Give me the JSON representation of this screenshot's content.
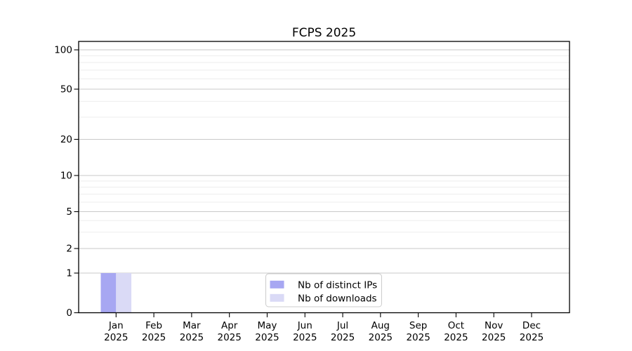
{
  "chart_data": {
    "type": "bar",
    "title": "FCPS 2025",
    "categories": [
      "Jan",
      "Feb",
      "Mar",
      "Apr",
      "May",
      "Jun",
      "Jul",
      "Aug",
      "Sep",
      "Oct",
      "Nov",
      "Dec"
    ],
    "category_year": "2025",
    "series": [
      {
        "name": "Nb of distinct IPs",
        "color": "#a7a7f2",
        "values": [
          1,
          0,
          0,
          0,
          0,
          0,
          0,
          0,
          0,
          0,
          0,
          0
        ]
      },
      {
        "name": "Nb of downloads",
        "color": "#dadaf6",
        "values": [
          1,
          0,
          0,
          0,
          0,
          0,
          0,
          0,
          0,
          0,
          0,
          0
        ]
      }
    ],
    "yaxis": {
      "scale": "symlog",
      "ticks": [
        0,
        1,
        2,
        5,
        10,
        20,
        50,
        100
      ],
      "minor_ticks": [
        3,
        4,
        6,
        7,
        8,
        9,
        30,
        40,
        60,
        70,
        80,
        90
      ],
      "ylim": [
        0,
        116
      ]
    },
    "xlabel": "",
    "ylabel": "",
    "grid": "on",
    "legend": {
      "position": "lower center",
      "entries": [
        "Nb of distinct IPs",
        "Nb of downloads"
      ]
    }
  },
  "colors": {
    "minor_grid": "#ededed",
    "major_grid": "#c9c9c9",
    "spine": "#000000",
    "legend_border": "#cccccc",
    "legend_bg": "#ffffff"
  }
}
